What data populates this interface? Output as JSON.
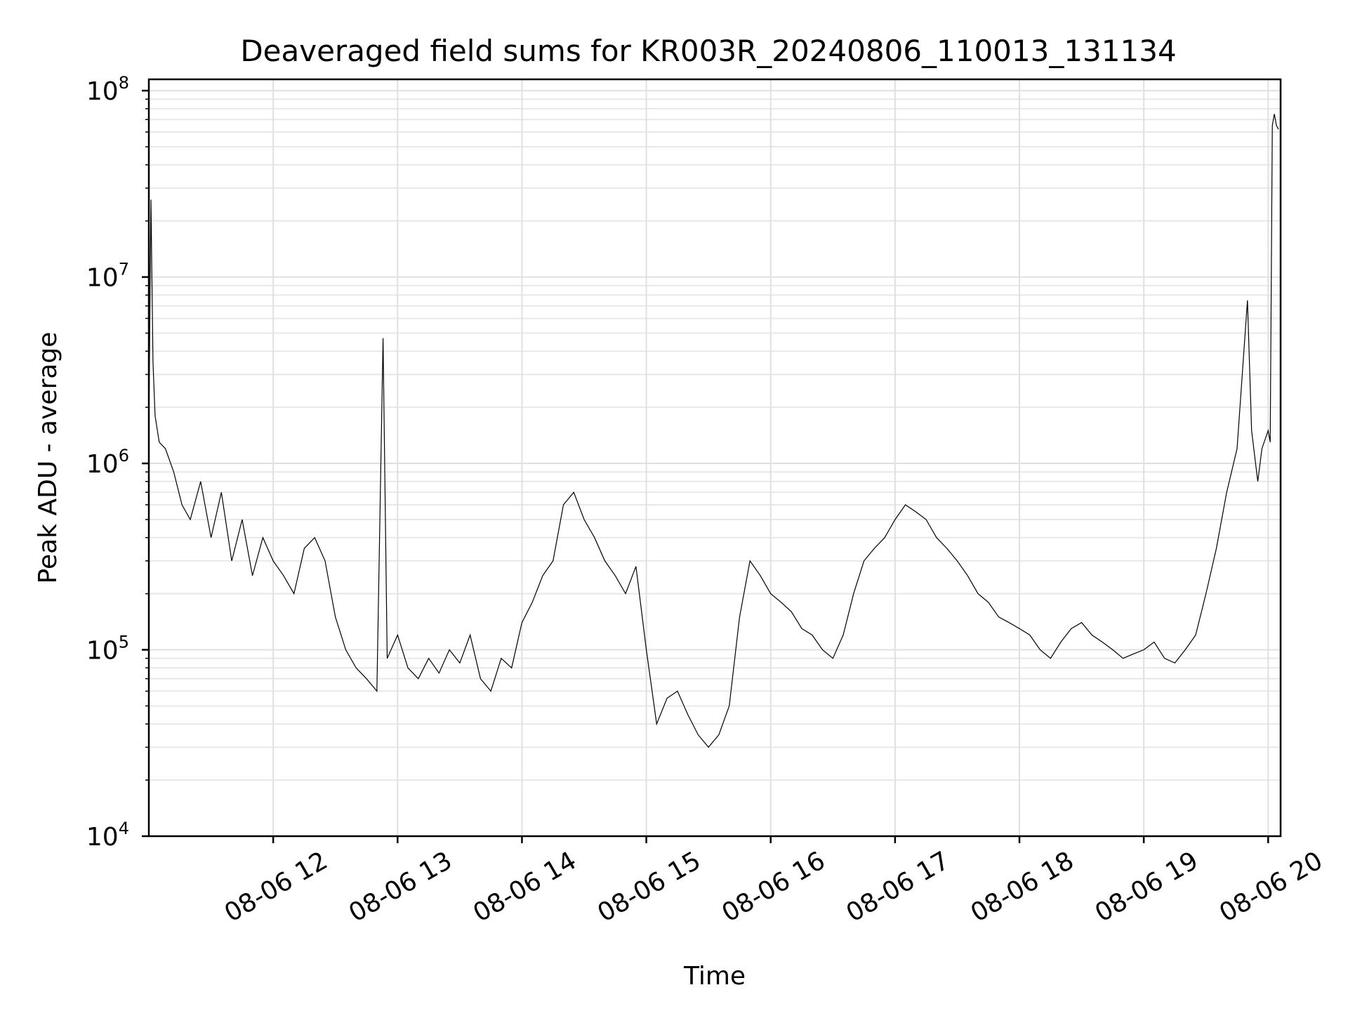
{
  "chart_data": {
    "type": "line",
    "title": "Deaveraged field sums for KR003R_20240806_110013_131134",
    "xlabel": "Time",
    "ylabel": "Peak ADU - average",
    "yscale": "log",
    "ylim": [
      10000,
      115000000
    ],
    "xlim": [
      "2024-08-06 11:00",
      "2024-08-06 20:06"
    ],
    "grid": true,
    "line_color": "#000000",
    "x_ticks": [
      {
        "value": "2024-08-06 12:00",
        "label": "08-06 12"
      },
      {
        "value": "2024-08-06 13:00",
        "label": "08-06 13"
      },
      {
        "value": "2024-08-06 14:00",
        "label": "08-06 14"
      },
      {
        "value": "2024-08-06 15:00",
        "label": "08-06 15"
      },
      {
        "value": "2024-08-06 16:00",
        "label": "08-06 16"
      },
      {
        "value": "2024-08-06 17:00",
        "label": "08-06 17"
      },
      {
        "value": "2024-08-06 18:00",
        "label": "08-06 18"
      },
      {
        "value": "2024-08-06 19:00",
        "label": "08-06 19"
      },
      {
        "value": "2024-08-06 20:00",
        "label": "08-06 20"
      }
    ],
    "y_ticks": [
      {
        "value": 10000,
        "base": "10",
        "exp": "4"
      },
      {
        "value": 100000,
        "base": "10",
        "exp": "5"
      },
      {
        "value": 1000000,
        "base": "10",
        "exp": "6"
      },
      {
        "value": 10000000,
        "base": "10",
        "exp": "7"
      },
      {
        "value": 100000000,
        "base": "10",
        "exp": "8"
      }
    ],
    "series": [
      {
        "x": [
          "2024-08-06 11:00",
          "2024-08-06 11:01",
          "2024-08-06 11:02",
          "2024-08-06 11:03",
          "2024-08-06 11:05",
          "2024-08-06 11:08",
          "2024-08-06 11:12",
          "2024-08-06 11:16",
          "2024-08-06 11:20",
          "2024-08-06 11:25",
          "2024-08-06 11:30",
          "2024-08-06 11:35",
          "2024-08-06 11:40",
          "2024-08-06 11:45",
          "2024-08-06 11:50",
          "2024-08-06 11:55",
          "2024-08-06 12:00",
          "2024-08-06 12:05",
          "2024-08-06 12:10",
          "2024-08-06 12:15",
          "2024-08-06 12:20",
          "2024-08-06 12:25",
          "2024-08-06 12:30",
          "2024-08-06 12:35",
          "2024-08-06 12:40",
          "2024-08-06 12:45",
          "2024-08-06 12:50",
          "2024-08-06 12:53",
          "2024-08-06 12:55",
          "2024-08-06 13:00",
          "2024-08-06 13:05",
          "2024-08-06 13:10",
          "2024-08-06 13:15",
          "2024-08-06 13:20",
          "2024-08-06 13:25",
          "2024-08-06 13:30",
          "2024-08-06 13:35",
          "2024-08-06 13:40",
          "2024-08-06 13:45",
          "2024-08-06 13:50",
          "2024-08-06 13:55",
          "2024-08-06 14:00",
          "2024-08-06 14:05",
          "2024-08-06 14:10",
          "2024-08-06 14:15",
          "2024-08-06 14:20",
          "2024-08-06 14:25",
          "2024-08-06 14:30",
          "2024-08-06 14:35",
          "2024-08-06 14:40",
          "2024-08-06 14:45",
          "2024-08-06 14:50",
          "2024-08-06 14:55",
          "2024-08-06 15:00",
          "2024-08-06 15:05",
          "2024-08-06 15:10",
          "2024-08-06 15:15",
          "2024-08-06 15:20",
          "2024-08-06 15:25",
          "2024-08-06 15:30",
          "2024-08-06 15:35",
          "2024-08-06 15:40",
          "2024-08-06 15:45",
          "2024-08-06 15:50",
          "2024-08-06 15:55",
          "2024-08-06 16:00",
          "2024-08-06 16:05",
          "2024-08-06 16:10",
          "2024-08-06 16:15",
          "2024-08-06 16:20",
          "2024-08-06 16:25",
          "2024-08-06 16:30",
          "2024-08-06 16:35",
          "2024-08-06 16:40",
          "2024-08-06 16:45",
          "2024-08-06 16:50",
          "2024-08-06 16:55",
          "2024-08-06 17:00",
          "2024-08-06 17:05",
          "2024-08-06 17:10",
          "2024-08-06 17:15",
          "2024-08-06 17:20",
          "2024-08-06 17:25",
          "2024-08-06 17:30",
          "2024-08-06 17:35",
          "2024-08-06 17:40",
          "2024-08-06 17:45",
          "2024-08-06 17:50",
          "2024-08-06 17:55",
          "2024-08-06 18:00",
          "2024-08-06 18:05",
          "2024-08-06 18:10",
          "2024-08-06 18:15",
          "2024-08-06 18:20",
          "2024-08-06 18:25",
          "2024-08-06 18:30",
          "2024-08-06 18:35",
          "2024-08-06 18:40",
          "2024-08-06 18:45",
          "2024-08-06 18:50",
          "2024-08-06 18:55",
          "2024-08-06 19:00",
          "2024-08-06 19:05",
          "2024-08-06 19:10",
          "2024-08-06 19:15",
          "2024-08-06 19:20",
          "2024-08-06 19:25",
          "2024-08-06 19:30",
          "2024-08-06 19:35",
          "2024-08-06 19:40",
          "2024-08-06 19:45",
          "2024-08-06 19:50",
          "2024-08-06 19:52",
          "2024-08-06 19:55",
          "2024-08-06 19:57",
          "2024-08-06 20:00",
          "2024-08-06 20:01",
          "2024-08-06 20:02",
          "2024-08-06 20:03",
          "2024-08-06 20:04",
          "2024-08-06 20:05"
        ],
        "values": [
          1500000,
          26000000,
          3500000,
          1800000,
          1300000,
          1200000,
          900000,
          600000,
          500000,
          800000,
          400000,
          700000,
          300000,
          500000,
          250000,
          400000,
          300000,
          250000,
          200000,
          350000,
          400000,
          300000,
          150000,
          100000,
          80000,
          70000,
          60000,
          4700000,
          90000,
          120000,
          80000,
          70000,
          90000,
          75000,
          100000,
          85000,
          120000,
          70000,
          60000,
          90000,
          80000,
          140000,
          180000,
          250000,
          300000,
          600000,
          700000,
          500000,
          400000,
          300000,
          250000,
          200000,
          280000,
          100000,
          40000,
          55000,
          60000,
          45000,
          35000,
          30000,
          35000,
          50000,
          150000,
          300000,
          250000,
          200000,
          180000,
          160000,
          130000,
          120000,
          100000,
          90000,
          120000,
          200000,
          300000,
          350000,
          400000,
          500000,
          600000,
          550000,
          500000,
          400000,
          350000,
          300000,
          250000,
          200000,
          180000,
          150000,
          140000,
          130000,
          120000,
          100000,
          90000,
          110000,
          130000,
          140000,
          120000,
          110000,
          100000,
          90000,
          95000,
          100000,
          110000,
          90000,
          85000,
          100000,
          120000,
          200000,
          350000,
          700000,
          1200000,
          7500000,
          1500000,
          800000,
          1200000,
          1500000,
          1300000,
          65000000,
          75000000,
          65000000,
          62000000
        ]
      }
    ]
  }
}
